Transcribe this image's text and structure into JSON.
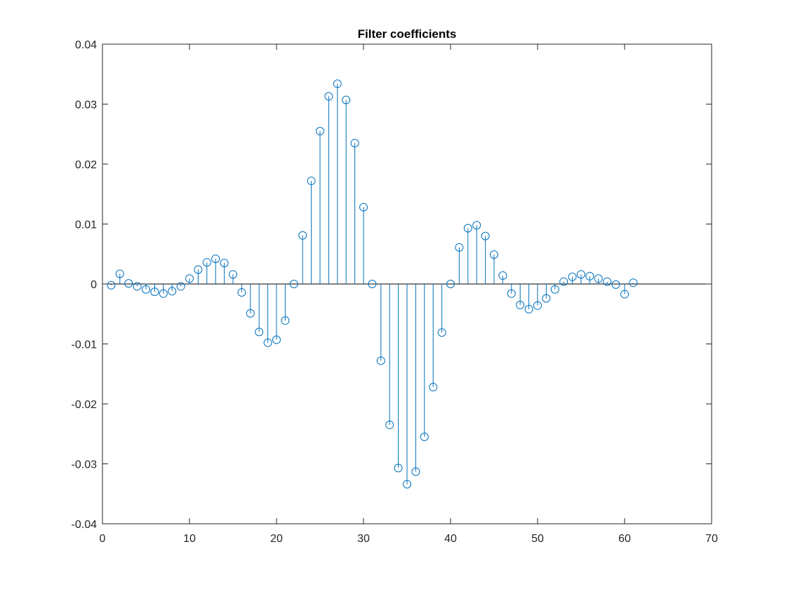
{
  "chart_data": {
    "type": "stem",
    "title": "Filter coefficients",
    "xlabel": "",
    "ylabel": "",
    "xlim": [
      0,
      70
    ],
    "ylim": [
      -0.04,
      0.04
    ],
    "xticks": [
      0,
      10,
      20,
      30,
      40,
      50,
      60,
      70
    ],
    "xtick_labels": [
      "0",
      "10",
      "20",
      "30",
      "40",
      "50",
      "60",
      "70"
    ],
    "yticks": [
      -0.04,
      -0.03,
      -0.02,
      -0.01,
      0,
      0.01,
      0.02,
      0.03,
      0.04
    ],
    "ytick_labels": [
      "-0.04",
      "-0.03",
      "-0.02",
      "-0.01",
      "0",
      "0.01",
      "0.02",
      "0.03",
      "0.04"
    ],
    "grid": false,
    "series_color": "#0072BD",
    "axis_color": "#262626",
    "baseline_color": "#000000",
    "marker": "circle-open",
    "x": [
      1,
      2,
      3,
      4,
      5,
      6,
      7,
      8,
      9,
      10,
      11,
      12,
      13,
      14,
      15,
      16,
      17,
      18,
      19,
      20,
      21,
      22,
      23,
      24,
      25,
      26,
      27,
      28,
      29,
      30,
      31,
      32,
      33,
      34,
      35,
      36,
      37,
      38,
      39,
      40,
      41,
      42,
      43,
      44,
      45,
      46,
      47,
      48,
      49,
      50,
      51,
      52,
      53,
      54,
      55,
      56,
      57,
      58,
      59,
      60,
      61
    ],
    "y": [
      -0.0002,
      0.0017,
      0.0001,
      -0.0004,
      -0.0009,
      -0.0013,
      -0.0016,
      -0.0012,
      -0.0004,
      0.0009,
      0.0024,
      0.0036,
      0.0042,
      0.0035,
      0.0016,
      -0.0014,
      -0.0049,
      -0.008,
      -0.0098,
      -0.0093,
      -0.0061,
      0.0,
      0.0081,
      0.0172,
      0.0255,
      0.0313,
      0.0334,
      0.0307,
      0.0235,
      0.0128,
      0.0,
      -0.0128,
      -0.0235,
      -0.0307,
      -0.0334,
      -0.0313,
      -0.0255,
      -0.0172,
      -0.0081,
      0.0,
      0.0061,
      0.0093,
      0.0098,
      0.008,
      0.0049,
      0.0014,
      -0.0016,
      -0.0035,
      -0.0042,
      -0.0036,
      -0.0024,
      -0.0009,
      0.0004,
      0.0012,
      0.0016,
      0.0013,
      0.0009,
      0.0004,
      -0.0001,
      -0.0017,
      0.0002
    ]
  }
}
